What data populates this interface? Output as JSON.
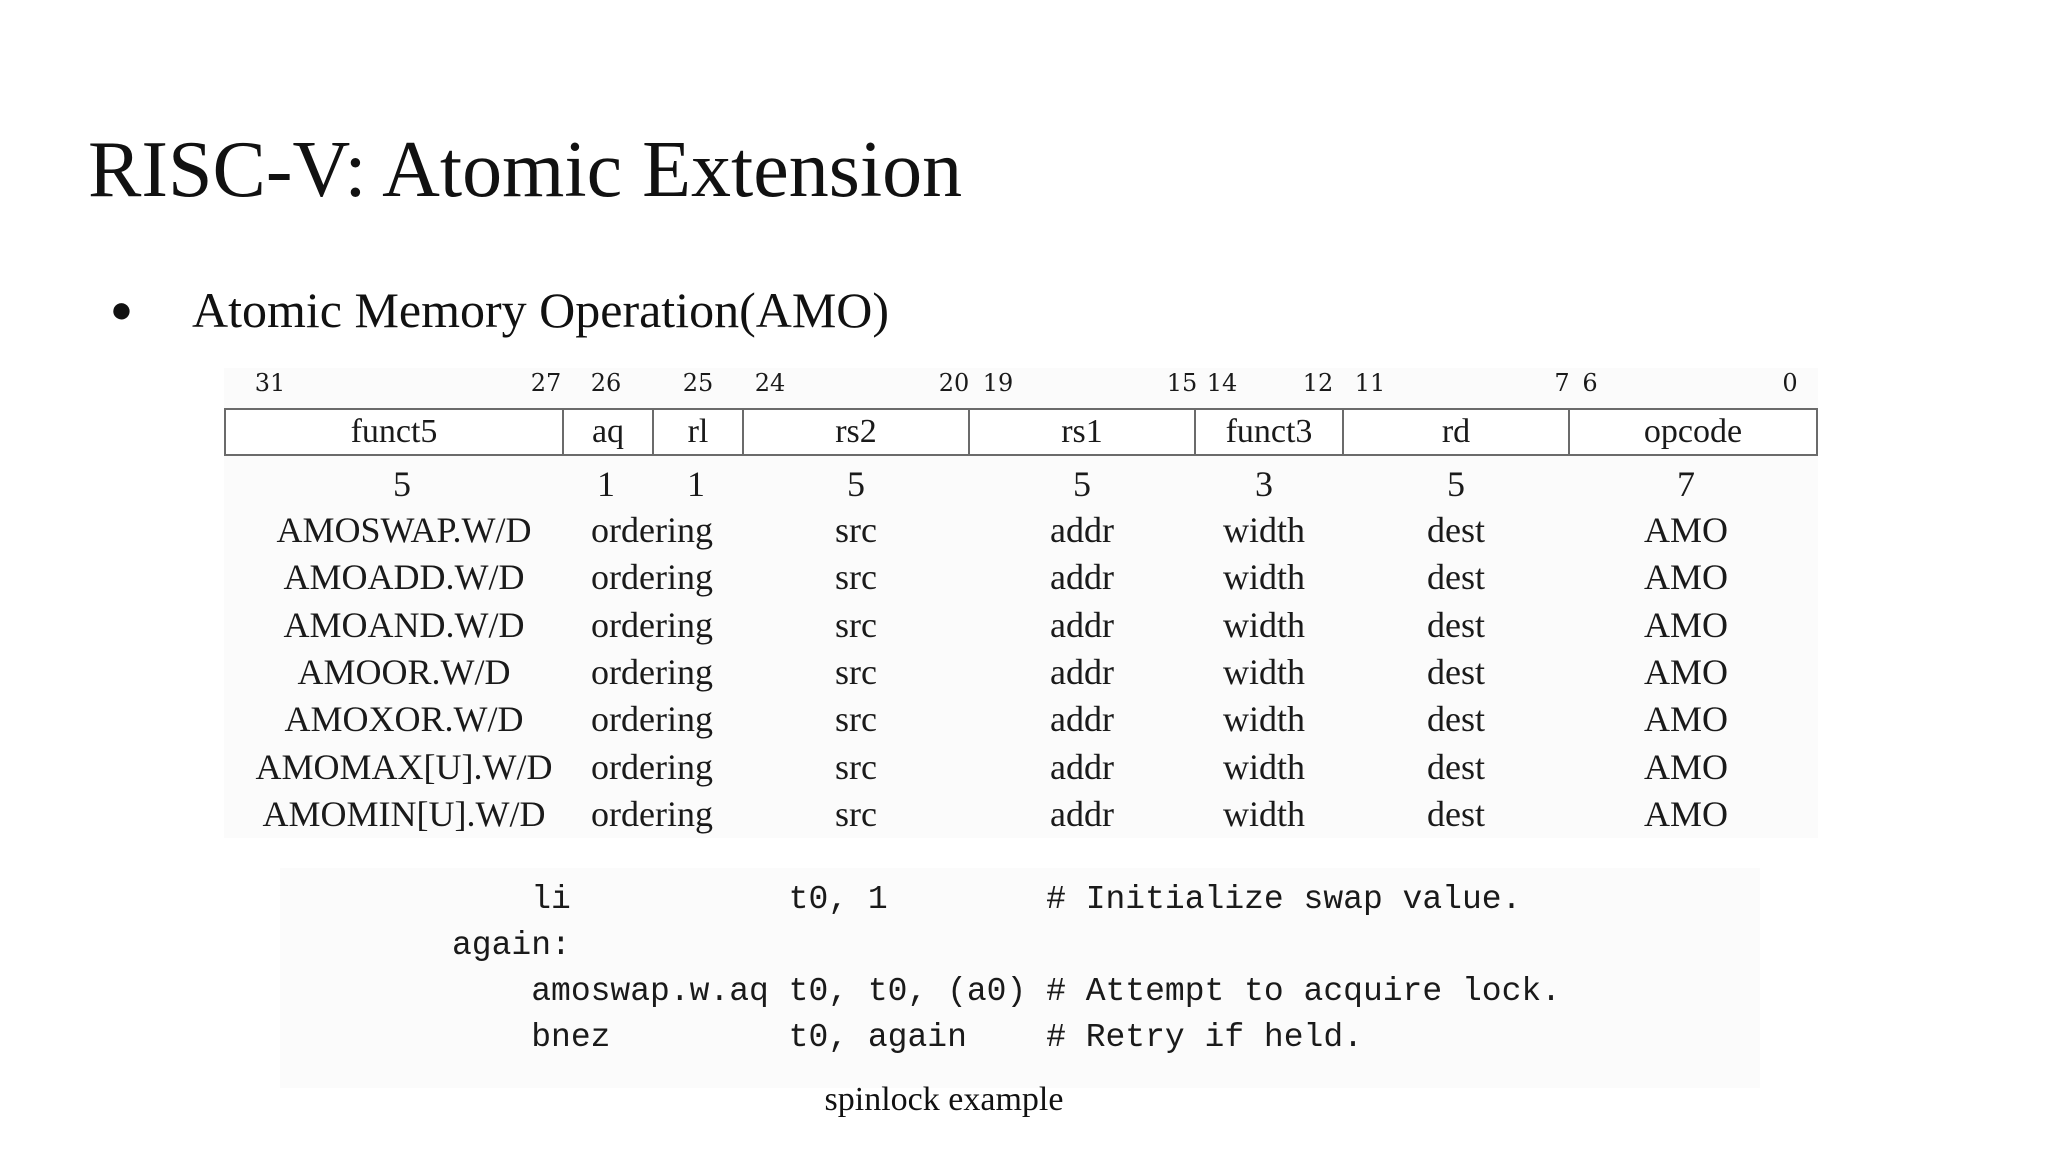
{
  "slide": {
    "title": "RISC-V: Atomic Extension",
    "bullet": "Atomic Memory Operation(AMO)",
    "caption": "spinlock example"
  },
  "encoding": {
    "bit_labels": [
      "31",
      "27",
      "26",
      "25",
      "24",
      "20",
      "19",
      "15",
      "14",
      "12",
      "11",
      "7",
      "6",
      "0"
    ],
    "fields": [
      {
        "name": "funct5",
        "width": "5"
      },
      {
        "name": "aq",
        "width": "1"
      },
      {
        "name": "rl",
        "width": "1"
      },
      {
        "name": "rs2",
        "width": "5"
      },
      {
        "name": "rs1",
        "width": "5"
      },
      {
        "name": "funct3",
        "width": "3"
      },
      {
        "name": "rd",
        "width": "5"
      },
      {
        "name": "opcode",
        "width": "7"
      }
    ],
    "rows": [
      [
        "AMOSWAP.W/D",
        "ordering",
        "src",
        "addr",
        "width",
        "dest",
        "AMO"
      ],
      [
        "AMOADD.W/D",
        "ordering",
        "src",
        "addr",
        "width",
        "dest",
        "AMO"
      ],
      [
        "AMOAND.W/D",
        "ordering",
        "src",
        "addr",
        "width",
        "dest",
        "AMO"
      ],
      [
        "AMOOR.W/D",
        "ordering",
        "src",
        "addr",
        "width",
        "dest",
        "AMO"
      ],
      [
        "AMOXOR.W/D",
        "ordering",
        "src",
        "addr",
        "width",
        "dest",
        "AMO"
      ],
      [
        "AMOMAX[U].W/D",
        "ordering",
        "src",
        "addr",
        "width",
        "dest",
        "AMO"
      ],
      [
        "AMOMIN[U].W/D",
        "ordering",
        "src",
        "addr",
        "width",
        "dest",
        "AMO"
      ]
    ]
  },
  "code": [
    "    li           t0, 1        # Initialize swap value.",
    "again:",
    "    amoswap.w.aq t0, t0, (a0) # Attempt to acquire lock.",
    "    bnez         t0, again    # Retry if held."
  ]
}
